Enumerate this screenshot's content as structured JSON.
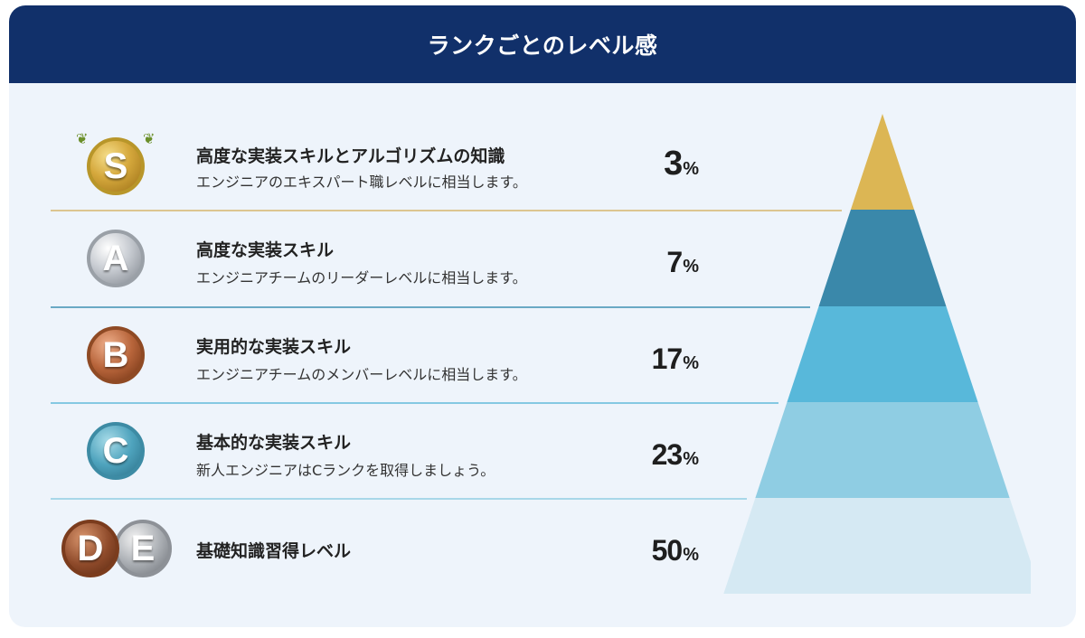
{
  "header": {
    "title": "ランクごとのレベル感"
  },
  "chart_data": {
    "type": "pyramid",
    "unit": "%",
    "ranks": [
      {
        "rank": "S",
        "title": "高度な実装スキルとアルゴリズムの知識",
        "description": "エンジニアのエキスパート職レベルに相当します。",
        "value": 3,
        "pct_label": "3",
        "color": "#dcb654",
        "divider_color": "#dcc590"
      },
      {
        "rank": "A",
        "title": "高度な実装スキル",
        "description": "エンジニアチームのリーダーレベルに相当します。",
        "value": 7,
        "pct_label": "7",
        "color": "#3a88aa",
        "divider_color": "#6aa9c4"
      },
      {
        "rank": "B",
        "title": "実用的な実装スキル",
        "description": "エンジニアチームのメンバーレベルに相当します。",
        "value": 17,
        "pct_label": "17",
        "color": "#58b8da",
        "divider_color": "#84c8e2"
      },
      {
        "rank": "C",
        "title": "基本的な実装スキル",
        "description": "新人エンジニアはCランクを取得しましょう。",
        "value": 23,
        "pct_label": "23",
        "color": "#8fcde3",
        "divider_color": "#a8d7e9"
      },
      {
        "rank": "DE",
        "badges": [
          "D",
          "E"
        ],
        "title": "基礎知識習得レベル",
        "description": "",
        "value": 50,
        "pct_label": "50",
        "color": "#d5e9f3",
        "divider_color": ""
      }
    ]
  }
}
